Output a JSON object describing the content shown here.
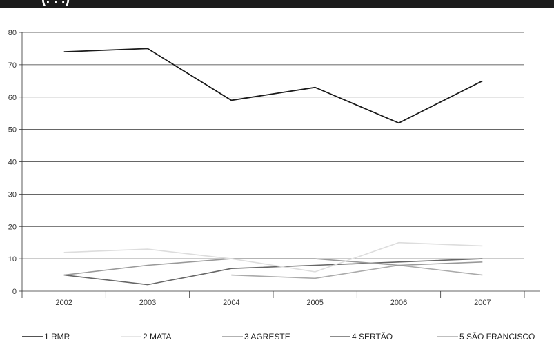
{
  "header": {
    "partial_text": "(. . .)"
  },
  "chart_data": {
    "type": "line",
    "title": "",
    "xlabel": "",
    "ylabel": "",
    "categories": [
      "2002",
      "2003",
      "2004",
      "2005",
      "2006",
      "2007"
    ],
    "ylim": [
      0,
      80
    ],
    "yticks": [
      "0",
      "10",
      "20",
      "30",
      "40",
      "50",
      "60",
      "70",
      "80"
    ],
    "grid": "horizontal",
    "legend_position": "bottom",
    "series": [
      {
        "name": "1 RMR",
        "color": "#1a1a1a",
        "values": [
          74,
          75,
          59,
          63,
          52,
          65
        ]
      },
      {
        "name": "2 MATA",
        "color": "#dddddd",
        "values": [
          12,
          13,
          10,
          6,
          15,
          14
        ]
      },
      {
        "name": "3 AGRESTE",
        "color": "#999999",
        "values": [
          5,
          8,
          10,
          10,
          8,
          9
        ]
      },
      {
        "name": "4 SERTÃO",
        "color": "#666666",
        "values": [
          5,
          2,
          7,
          8,
          9,
          10
        ]
      },
      {
        "name": "5 SÃO FRANCISCO",
        "color": "#aaaaaa",
        "values": [
          null,
          null,
          5,
          4,
          8,
          5
        ]
      }
    ]
  }
}
